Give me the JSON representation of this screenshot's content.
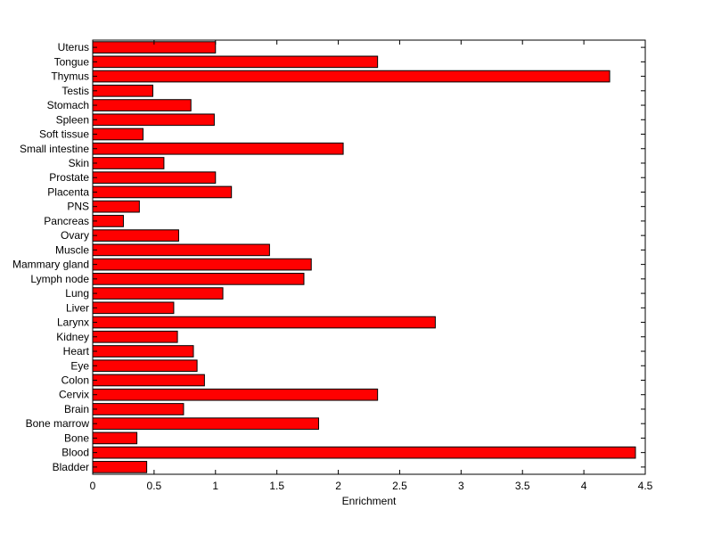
{
  "chart_data": {
    "type": "bar",
    "orientation": "horizontal",
    "title": "",
    "xlabel": "Enrichment",
    "ylabel": "",
    "xlim": [
      0,
      4.5
    ],
    "xticks": [
      "0",
      "0.5",
      "1",
      "1.5",
      "2",
      "2.5",
      "3",
      "3.5",
      "4",
      "4.5"
    ],
    "grid": false,
    "bar_color": "#ff0000",
    "bar_edge_color": "#000000",
    "categories": [
      "Uterus",
      "Tongue",
      "Thymus",
      "Testis",
      "Stomach",
      "Spleen",
      "Soft tissue",
      "Small intestine",
      "Skin",
      "Prostate",
      "Placenta",
      "PNS",
      "Pancreas",
      "Ovary",
      "Muscle",
      "Mammary gland",
      "Lymph node",
      "Lung",
      "Liver",
      "Larynx",
      "Kidney",
      "Heart",
      "Eye",
      "Colon",
      "Cervix",
      "Brain",
      "Bone marrow",
      "Bone",
      "Blood",
      "Bladder"
    ],
    "values": [
      1.0,
      2.32,
      4.21,
      0.49,
      0.8,
      0.99,
      0.41,
      2.04,
      0.58,
      1.0,
      1.13,
      0.38,
      0.25,
      0.7,
      1.44,
      1.78,
      1.72,
      1.06,
      0.66,
      2.79,
      0.69,
      0.82,
      0.85,
      0.91,
      2.32,
      0.74,
      1.84,
      0.36,
      4.42,
      0.44
    ]
  }
}
